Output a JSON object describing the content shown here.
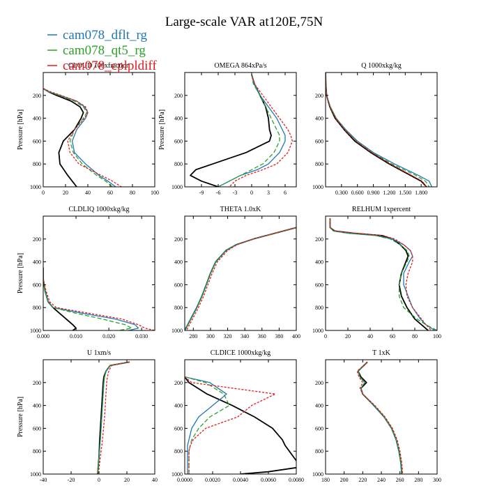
{
  "figure": {
    "title": "Large-scale VAR at120E,75N",
    "legend": [
      {
        "name": "cam078_dflt_rg",
        "color": "#1f77b4"
      },
      {
        "name": "cam078_qt5_rg",
        "color": "#2ca02c"
      },
      {
        "name": "cam078_cplpldiff",
        "color": "#e41a1c"
      }
    ],
    "series_colors": [
      "#000000",
      "#1f77b4",
      "#2ca02c",
      "#e41a1c"
    ]
  },
  "chart_data": [
    {
      "type": "line",
      "title": "CLOUD 100xfraction",
      "ylabel": "Pressure [hPa]",
      "xlim": [
        0,
        100
      ],
      "ylim": [
        1000,
        0
      ],
      "y_ticks": [
        200,
        400,
        600,
        800,
        1000
      ],
      "x_ticks": [
        0,
        20,
        40,
        60,
        80,
        100
      ],
      "x_tick_labels": [
        "0",
        "20",
        "40",
        "60",
        "80",
        "100"
      ],
      "y": [
        140,
        170,
        200,
        250,
        300,
        350,
        400,
        500,
        600,
        700,
        800,
        900,
        950,
        1000
      ],
      "series": [
        {
          "values": [
            0,
            5,
            12,
            25,
            33,
            36,
            34,
            28,
            18,
            14,
            15,
            22,
            26,
            30
          ]
        },
        {
          "values": [
            0,
            5,
            15,
            30,
            37,
            40,
            38,
            30,
            26,
            28,
            38,
            50,
            58,
            65
          ]
        },
        {
          "values": [
            0,
            6,
            14,
            28,
            36,
            39,
            36,
            28,
            24,
            27,
            35,
            48,
            56,
            62
          ]
        },
        {
          "values": [
            0,
            7,
            16,
            30,
            38,
            40,
            37,
            28,
            22,
            24,
            32,
            52,
            62,
            70
          ]
        }
      ]
    },
    {
      "type": "line",
      "title": "OMEGA 864xPa/s",
      "ylabel": "Pressure [hPa]",
      "xlim": [
        -12,
        8
      ],
      "ylim": [
        1000,
        0
      ],
      "y_ticks": [
        200,
        400,
        600,
        800,
        1000
      ],
      "x_ticks": [
        -9,
        -6,
        -3,
        0,
        3,
        6
      ],
      "x_tick_labels": [
        "-9",
        "-6",
        "-3",
        "0",
        "3",
        "6"
      ],
      "y": [
        20,
        100,
        200,
        300,
        400,
        500,
        550,
        600,
        700,
        800,
        850,
        900,
        950,
        1000
      ],
      "series": [
        {
          "values": [
            0,
            0.5,
            1.5,
            2.5,
            3,
            3.2,
            3.5,
            3.2,
            -1,
            -7,
            -10,
            -11,
            -9,
            -6
          ]
        },
        {
          "values": [
            0,
            0.5,
            1.5,
            3,
            4.5,
            5.5,
            6,
            6,
            5,
            3,
            1,
            -2,
            -4,
            -6
          ]
        },
        {
          "values": [
            0,
            0.3,
            1.5,
            2.5,
            3.5,
            4.5,
            5,
            5,
            4,
            2,
            0,
            -2,
            -4,
            -6
          ]
        },
        {
          "values": [
            0,
            0.5,
            2,
            3.5,
            5,
            6.5,
            7,
            7.3,
            6.5,
            4.5,
            2,
            -1,
            -3,
            -4
          ]
        }
      ]
    },
    {
      "type": "line",
      "title": "Q 1000xkg/kg",
      "xlim": [
        0,
        2.1
      ],
      "ylim": [
        1000,
        0
      ],
      "y_ticks": [
        200,
        400,
        600,
        800,
        1000
      ],
      "x_ticks": [
        0.3,
        0.6,
        0.9,
        1.2,
        1.5,
        1.8
      ],
      "x_tick_labels": [
        "0.300",
        "0.600",
        "0.900",
        "1.200",
        "1.500",
        "1.800"
      ],
      "y": [
        0,
        100,
        200,
        300,
        400,
        500,
        600,
        700,
        800,
        900,
        950,
        1000
      ],
      "series": [
        {
          "values": [
            0,
            0.005,
            0.02,
            0.08,
            0.18,
            0.35,
            0.55,
            0.85,
            1.2,
            1.6,
            1.8,
            1.9
          ]
        },
        {
          "values": [
            0,
            0.005,
            0.02,
            0.09,
            0.2,
            0.38,
            0.6,
            0.9,
            1.3,
            1.75,
            1.95,
            2.0
          ]
        },
        {
          "values": [
            0,
            0.005,
            0.02,
            0.09,
            0.2,
            0.37,
            0.58,
            0.88,
            1.25,
            1.7,
            1.88,
            1.95
          ]
        },
        {
          "values": [
            0,
            0.005,
            0.02,
            0.08,
            0.19,
            0.36,
            0.57,
            0.87,
            1.22,
            1.62,
            1.82,
            1.9
          ]
        }
      ]
    },
    {
      "type": "line",
      "title": "CLDLIQ 1000xkg/kg",
      "ylabel": "Pressure [hPa]",
      "xlim": [
        0,
        0.034
      ],
      "ylim": [
        1000,
        0
      ],
      "y_ticks": [
        200,
        400,
        600,
        800,
        1000
      ],
      "x_ticks": [
        0,
        0.01,
        0.02,
        0.03
      ],
      "x_tick_labels": [
        "0.000",
        "0.010",
        "0.020",
        "0.030"
      ],
      "y": [
        450,
        550,
        650,
        750,
        800,
        850,
        900,
        950,
        980,
        1000
      ],
      "series": [
        {
          "values": [
            0,
            0,
            0.0005,
            0.0015,
            0.003,
            0.005,
            0.007,
            0.009,
            0.01,
            0.009
          ]
        },
        {
          "values": [
            0,
            0,
            0.0005,
            0.0015,
            0.003,
            0.012,
            0.022,
            0.028,
            0.029,
            0.026
          ]
        },
        {
          "values": [
            0,
            0,
            0.0005,
            0.0015,
            0.003,
            0.01,
            0.018,
            0.025,
            0.027,
            0.023
          ]
        },
        {
          "values": [
            0,
            0,
            0.0008,
            0.002,
            0.004,
            0.014,
            0.024,
            0.029,
            0.031,
            0.034
          ]
        }
      ]
    },
    {
      "type": "line",
      "title": "THETA 1.0xK",
      "xlim": [
        270,
        400
      ],
      "ylim": [
        1000,
        0
      ],
      "y_ticks": [
        200,
        400,
        600,
        800,
        1000
      ],
      "x_ticks": [
        280,
        300,
        320,
        340,
        360,
        380,
        400
      ],
      "x_tick_labels": [
        "280",
        "300",
        "320",
        "340",
        "360",
        "380",
        "400"
      ],
      "y": [
        100,
        150,
        200,
        250,
        300,
        400,
        500,
        600,
        700,
        800,
        900,
        1000
      ],
      "series": [
        {
          "values": [
            400,
            375,
            350,
            330,
            318,
            306,
            300,
            295,
            290,
            284,
            277,
            270
          ]
        },
        {
          "values": [
            400,
            375,
            350,
            330,
            318,
            306,
            300,
            295,
            290,
            284,
            277,
            270
          ]
        },
        {
          "values": [
            400,
            375,
            350,
            330,
            318,
            306,
            300,
            295,
            290,
            284,
            277,
            270
          ]
        },
        {
          "values": [
            400,
            375,
            350,
            331,
            320,
            308,
            302,
            297,
            292,
            286,
            279,
            272
          ]
        }
      ]
    },
    {
      "type": "line",
      "title": "RELHUM 1xpercent",
      "xlim": [
        0,
        100
      ],
      "ylim": [
        1000,
        0
      ],
      "y_ticks": [
        200,
        400,
        600,
        800,
        1000
      ],
      "x_ticks": [
        0,
        20,
        40,
        60,
        80,
        100
      ],
      "x_tick_labels": [
        "0",
        "20",
        "40",
        "60",
        "80",
        "100"
      ],
      "y": [
        20,
        100,
        130,
        150,
        170,
        200,
        250,
        300,
        350,
        400,
        500,
        600,
        700,
        800,
        900,
        950,
        1000
      ],
      "series": [
        {
          "values": [
            4,
            4,
            8,
            25,
            50,
            60,
            67,
            72,
            74,
            72,
            68,
            66,
            68,
            73,
            80,
            86,
            92
          ]
        },
        {
          "values": [
            4,
            4,
            7,
            20,
            45,
            60,
            70,
            76,
            78,
            75,
            70,
            70,
            74,
            78,
            85,
            90,
            98
          ]
        },
        {
          "values": [
            4,
            4,
            7,
            22,
            45,
            58,
            67,
            73,
            75,
            73,
            68,
            66,
            66,
            70,
            82,
            90,
            100
          ]
        },
        {
          "values": [
            4,
            4,
            9,
            28,
            52,
            62,
            70,
            76,
            78,
            78,
            74,
            72,
            73,
            78,
            86,
            90,
            95
          ]
        }
      ]
    },
    {
      "type": "line",
      "title": "U 1xm/s",
      "ylabel": "Pressure [hPa]",
      "xlim": [
        -40,
        40
      ],
      "ylim": [
        1000,
        0
      ],
      "y_ticks": [
        200,
        400,
        600,
        800,
        1000
      ],
      "x_ticks": [
        -40,
        -20,
        0,
        20,
        40
      ],
      "x_tick_labels": [
        "-40",
        "-20",
        "0",
        "20",
        "40"
      ],
      "y": [
        20,
        50,
        100,
        150,
        200,
        300,
        500,
        700,
        850,
        1000
      ],
      "series": [
        {
          "values": [
            22,
            8,
            5,
            3.5,
            3,
            2.5,
            1.5,
            0.5,
            0,
            -1
          ]
        },
        {
          "values": [
            22,
            8,
            5,
            4,
            3.5,
            3,
            2,
            1,
            0,
            -1
          ]
        },
        {
          "values": [
            22,
            8,
            5,
            4,
            3.5,
            3,
            2,
            1,
            0,
            -1
          ]
        },
        {
          "values": [
            22,
            9,
            7,
            6,
            5.5,
            5,
            4,
            2.5,
            1,
            -0.5
          ]
        }
      ]
    },
    {
      "type": "line",
      "title": "CLDICE 1000xkg/kg",
      "xlim": [
        0,
        0.008
      ],
      "ylim": [
        1000,
        0
      ],
      "y_ticks": [
        200,
        400,
        600,
        800,
        1000
      ],
      "x_ticks": [
        0,
        0.002,
        0.004,
        0.006,
        0.008
      ],
      "x_tick_labels": [
        "0.0000",
        "0.0020",
        "0.0040",
        "0.0060",
        "0.0080"
      ],
      "y": [
        150,
        200,
        300,
        400,
        500,
        600,
        700,
        750,
        800,
        850,
        900,
        940,
        980,
        1000
      ],
      "series": [
        {
          "values": [
            0,
            0.0003,
            0.0016,
            0.0034,
            0.005,
            0.0063,
            0.007,
            0.0072,
            0.0075,
            0.0078,
            0.0081,
            0.0082,
            0.006,
            0.004
          ]
        },
        {
          "values": [
            0,
            0.0018,
            0.003,
            0.002,
            0.001,
            0.0005,
            0.0003,
            0.0002,
            0.0002,
            0.0002,
            0.0002,
            0.0002,
            0.0002,
            0.0002
          ]
        },
        {
          "values": [
            0,
            0.0015,
            0.0028,
            0.0032,
            0.0018,
            0.001,
            0.0005,
            0.0004,
            0.0003,
            0.0003,
            0.0003,
            0.0003,
            0.0003,
            0.0003
          ]
        },
        {
          "values": [
            0,
            0.0005,
            0.0065,
            0.0048,
            0.0038,
            0.0015,
            0.0006,
            0.0004,
            0.0003,
            0.0003,
            0.0003,
            0.0003,
            0.0003,
            0.0003
          ]
        }
      ]
    },
    {
      "type": "line",
      "title": "T 1xK",
      "xlim": [
        180,
        300
      ],
      "ylim": [
        1000,
        0
      ],
      "y_ticks": [
        200,
        400,
        600,
        800,
        1000
      ],
      "x_ticks": [
        180,
        200,
        220,
        240,
        260,
        280,
        300
      ],
      "x_tick_labels": [
        "180",
        "200",
        "220",
        "240",
        "260",
        "280",
        "300"
      ],
      "y": [
        20,
        100,
        150,
        200,
        250,
        300,
        400,
        500,
        600,
        700,
        800,
        900,
        1000
      ],
      "series": [
        {
          "values": [
            225,
            215,
            218,
            224,
            218,
            220,
            232,
            243,
            251,
            256,
            259,
            261,
            262
          ]
        },
        {
          "values": [
            225,
            215,
            217,
            222,
            218,
            220,
            232,
            243,
            251,
            256,
            259,
            261,
            262
          ]
        },
        {
          "values": [
            225,
            215,
            217,
            222,
            218,
            220,
            232,
            243,
            251,
            256,
            259,
            261,
            262
          ]
        },
        {
          "values": [
            225,
            214,
            216,
            220,
            217,
            220,
            233,
            244,
            252,
            257,
            260,
            262,
            263
          ]
        }
      ]
    }
  ]
}
